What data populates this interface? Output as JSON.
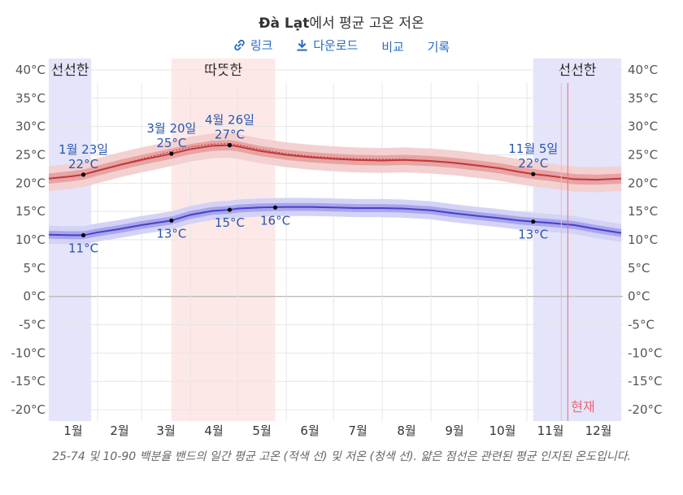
{
  "header": {
    "title_city": "Đà Lạt",
    "title_rest": "에서 평균 고온 저온"
  },
  "toolbar": {
    "link_label": "링크",
    "download_label": "다운로드",
    "compare_label": "비교",
    "history_label": "기록",
    "link_icon": "link-icon",
    "download_icon": "download-icon"
  },
  "caption": "25-74 및 10-90 백분율 밴드의 일간 평균 고온 (적색 선) 및 저온 (청색 선). 얇은 점선은 관련된 평균 인지된 온도입니다.",
  "colors": {
    "high_line": "#c0393b",
    "high_band_inner": "#e8a3a3",
    "high_band_outer": "#f3d1d1",
    "low_line": "#4a3fc8",
    "low_band_inner": "#a8a6ec",
    "low_band_outer": "#d4d3f6",
    "cool_season": "#e4e4fb",
    "warm_season": "#fde8e8",
    "annotation": "#2a56b0",
    "now_line": "#ee6677"
  },
  "chart_data": {
    "type": "line",
    "x_unit": "day_of_year",
    "ylim": [
      -22,
      42
    ],
    "yticks": [
      40,
      35,
      30,
      25,
      20,
      15,
      10,
      5,
      0,
      -5,
      -10,
      -15,
      -20
    ],
    "ytick_labels": [
      "40°C",
      "35°C",
      "30°C",
      "25°C",
      "20°C",
      "15°C",
      "10°C",
      "5°C",
      "0°C",
      "-5°C",
      "-10°C",
      "-15°C",
      "-20°C"
    ],
    "months": [
      "1월",
      "2월",
      "3월",
      "4월",
      "5월",
      "6월",
      "7월",
      "8월",
      "9월",
      "10월",
      "11월",
      "12월"
    ],
    "grid": true,
    "series": [
      {
        "x": [
          1,
          15,
          23,
          32,
          46,
          60,
          79,
          91,
          105,
          116,
          121,
          135,
          152,
          166,
          182,
          196,
          213,
          227,
          244,
          258,
          274,
          288,
          300,
          309,
          319,
          335,
          349,
          365
        ],
        "values": [
          20.8,
          21.2,
          21.5,
          22.2,
          23.2,
          24.1,
          25.2,
          26.0,
          26.6,
          26.7,
          26.5,
          25.7,
          25.0,
          24.6,
          24.3,
          24.1,
          24.0,
          24.1,
          23.9,
          23.6,
          23.1,
          22.6,
          22.0,
          21.6,
          21.3,
          20.7,
          20.6,
          20.8
        ],
        "band_inner": 0.9,
        "band_outer": 2.2
      },
      {
        "x": [
          1,
          15,
          23,
          32,
          46,
          60,
          79,
          91,
          105,
          116,
          121,
          135,
          152,
          166,
          182,
          196,
          213,
          227,
          244,
          258,
          274,
          288,
          300,
          309,
          319,
          335,
          349,
          365
        ],
        "values": [
          10.9,
          10.8,
          10.8,
          11.3,
          11.9,
          12.6,
          13.4,
          14.4,
          15.1,
          15.3,
          15.5,
          15.7,
          15.8,
          15.8,
          15.7,
          15.6,
          15.6,
          15.5,
          15.2,
          14.7,
          14.2,
          13.8,
          13.4,
          13.2,
          13.0,
          12.6,
          11.9,
          11.2
        ],
        "band_inner": 0.7,
        "band_outer": 1.6
      }
    ],
    "feels_like_high": [
      20.8,
      21.2,
      21.6,
      22.3,
      23.3,
      24.3,
      25.6,
      26.4,
      26.9,
      27.0,
      26.8,
      26.0,
      25.2,
      24.8,
      24.5,
      24.3,
      24.2,
      24.2,
      24.0,
      23.7,
      23.2,
      22.7,
      22.0,
      21.6,
      21.3,
      20.7,
      20.6,
      20.8
    ],
    "seasons": [
      {
        "label": "선선한",
        "start": 1,
        "end": 28,
        "kind": "cool"
      },
      {
        "label": "따뜻한",
        "start": 79,
        "end": 145,
        "kind": "warm"
      },
      {
        "label": "선선한",
        "start": 309,
        "end": 365,
        "kind": "cool"
      }
    ],
    "season_label_left": "선선한",
    "season_label_warm": "따뜻한",
    "season_label_right": "선선한",
    "annotations": [
      {
        "x": 23,
        "y": 21.5,
        "date": "1월 23일",
        "temp": "22°C",
        "pos": "above"
      },
      {
        "x": 79,
        "y": 25.2,
        "date": "3월 20일",
        "temp": "25°C",
        "pos": "above"
      },
      {
        "x": 116,
        "y": 26.7,
        "date": "4월 26일",
        "temp": "27°C",
        "pos": "above"
      },
      {
        "x": 309,
        "y": 21.6,
        "date": "11월 5일",
        "temp": "22°C",
        "pos": "above"
      },
      {
        "x": 23,
        "y": 10.8,
        "date": "",
        "temp": "11°C",
        "pos": "below"
      },
      {
        "x": 79,
        "y": 13.4,
        "date": "",
        "temp": "13°C",
        "pos": "below"
      },
      {
        "x": 116,
        "y": 15.3,
        "date": "",
        "temp": "15°C",
        "pos": "below"
      },
      {
        "x": 145,
        "y": 15.7,
        "date": "",
        "temp": "16°C",
        "pos": "below"
      },
      {
        "x": 309,
        "y": 13.2,
        "date": "",
        "temp": "13°C",
        "pos": "below"
      }
    ],
    "now": {
      "x": 331,
      "label": "현재"
    }
  }
}
